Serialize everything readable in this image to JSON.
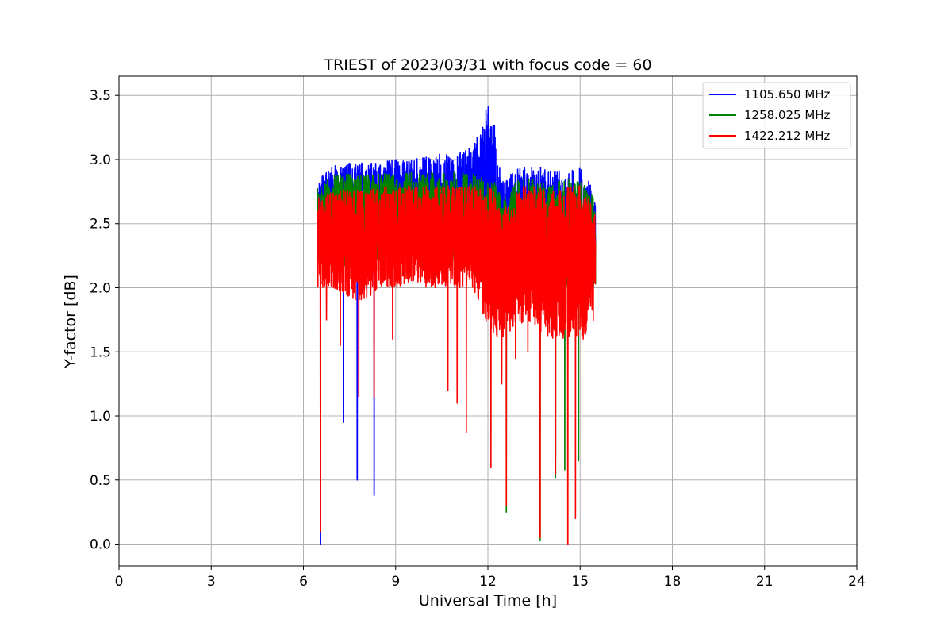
{
  "chart_data": {
    "type": "line",
    "title": "TRIEST of 2023/03/31 with focus code = 60",
    "xlabel": "Universal Time [h]",
    "ylabel": "Y-factor [dB]",
    "xlim": [
      0,
      24
    ],
    "ylim": [
      -0.17,
      3.65
    ],
    "xticks": [
      0,
      3,
      6,
      9,
      12,
      15,
      18,
      21,
      24
    ],
    "yticks": [
      0.0,
      0.5,
      1.0,
      1.5,
      2.0,
      2.5,
      3.0,
      3.5
    ],
    "ytick_labels": [
      "0.0",
      "0.5",
      "1.0",
      "1.5",
      "2.0",
      "2.5",
      "3.0",
      "3.5"
    ],
    "grid": true,
    "legend_position": "top-right",
    "x_range_observed": [
      6.45,
      15.5
    ],
    "series": [
      {
        "name": "1105.650 MHz",
        "color": "#0000ff",
        "envelope": {
          "x": [
            6.5,
            7.0,
            7.5,
            8.0,
            8.5,
            9.0,
            9.5,
            10.0,
            10.5,
            11.0,
            11.5,
            11.8,
            12.0,
            12.2,
            12.5,
            13.0,
            13.5,
            14.0,
            14.5,
            15.0,
            15.5
          ],
          "upper": [
            2.85,
            2.95,
            2.98,
            2.97,
            2.98,
            3.0,
            3.0,
            3.02,
            3.05,
            3.05,
            3.1,
            3.25,
            3.45,
            3.3,
            2.85,
            2.95,
            2.95,
            2.95,
            2.9,
            2.95,
            2.75
          ],
          "lower": [
            2.3,
            2.3,
            2.25,
            2.25,
            2.3,
            2.3,
            2.35,
            2.35,
            2.3,
            2.3,
            2.35,
            2.4,
            2.1,
            2.0,
            2.0,
            2.1,
            2.1,
            2.0,
            2.0,
            2.0,
            2.1
          ]
        },
        "dips": [
          [
            6.55,
            0.0
          ],
          [
            7.3,
            0.95
          ],
          [
            7.75,
            0.5
          ],
          [
            8.3,
            0.38
          ]
        ]
      },
      {
        "name": "1258.025 MHz",
        "color": "#008000",
        "envelope": {
          "x": [
            6.5,
            7.0,
            7.5,
            8.0,
            8.5,
            9.0,
            9.5,
            10.0,
            10.5,
            11.0,
            11.5,
            12.0,
            12.2,
            12.5,
            13.0,
            13.5,
            14.0,
            14.5,
            15.0,
            15.5
          ],
          "upper": [
            2.8,
            2.88,
            2.9,
            2.88,
            2.9,
            2.88,
            2.9,
            2.9,
            2.9,
            2.9,
            2.9,
            2.85,
            2.85,
            2.7,
            2.85,
            2.85,
            2.8,
            2.85,
            2.85,
            2.7
          ],
          "lower": [
            2.2,
            2.2,
            2.15,
            2.15,
            2.2,
            2.2,
            2.25,
            2.2,
            2.2,
            2.2,
            2.2,
            2.0,
            1.9,
            1.9,
            2.0,
            2.0,
            1.9,
            1.9,
            1.9,
            2.0
          ]
        },
        "dips": [
          [
            12.6,
            0.25
          ],
          [
            13.7,
            0.03
          ],
          [
            14.2,
            0.52
          ],
          [
            14.5,
            0.58
          ],
          [
            14.95,
            0.65
          ]
        ]
      },
      {
        "name": "1422.212 MHz",
        "color": "#ff0000",
        "envelope": {
          "x": [
            6.5,
            7.0,
            7.5,
            8.0,
            8.5,
            9.0,
            9.5,
            10.0,
            10.5,
            11.0,
            11.5,
            12.0,
            12.2,
            12.5,
            13.0,
            13.5,
            14.0,
            14.5,
            15.0,
            15.5
          ],
          "upper": [
            2.7,
            2.75,
            2.78,
            2.75,
            2.8,
            2.78,
            2.8,
            2.8,
            2.8,
            2.8,
            2.8,
            2.8,
            2.75,
            2.6,
            2.8,
            2.8,
            2.75,
            2.8,
            2.8,
            2.6
          ],
          "lower": [
            2.0,
            2.0,
            1.9,
            1.9,
            2.0,
            2.0,
            2.05,
            2.0,
            2.0,
            2.0,
            2.0,
            1.7,
            1.6,
            1.6,
            1.7,
            1.7,
            1.6,
            1.6,
            1.6,
            1.7
          ]
        },
        "dips": [
          [
            6.55,
            0.1
          ],
          [
            6.75,
            1.75
          ],
          [
            7.2,
            1.55
          ],
          [
            7.8,
            1.15
          ],
          [
            8.3,
            1.15
          ],
          [
            8.9,
            1.6
          ],
          [
            10.7,
            1.2
          ],
          [
            11.0,
            1.1
          ],
          [
            11.3,
            0.87
          ],
          [
            12.1,
            0.6
          ],
          [
            12.45,
            1.25
          ],
          [
            12.6,
            0.3
          ],
          [
            12.9,
            1.45
          ],
          [
            13.3,
            1.5
          ],
          [
            13.7,
            0.05
          ],
          [
            14.2,
            0.55
          ],
          [
            14.6,
            0.0
          ],
          [
            14.85,
            0.2
          ],
          [
            15.1,
            1.6
          ]
        ]
      }
    ]
  }
}
